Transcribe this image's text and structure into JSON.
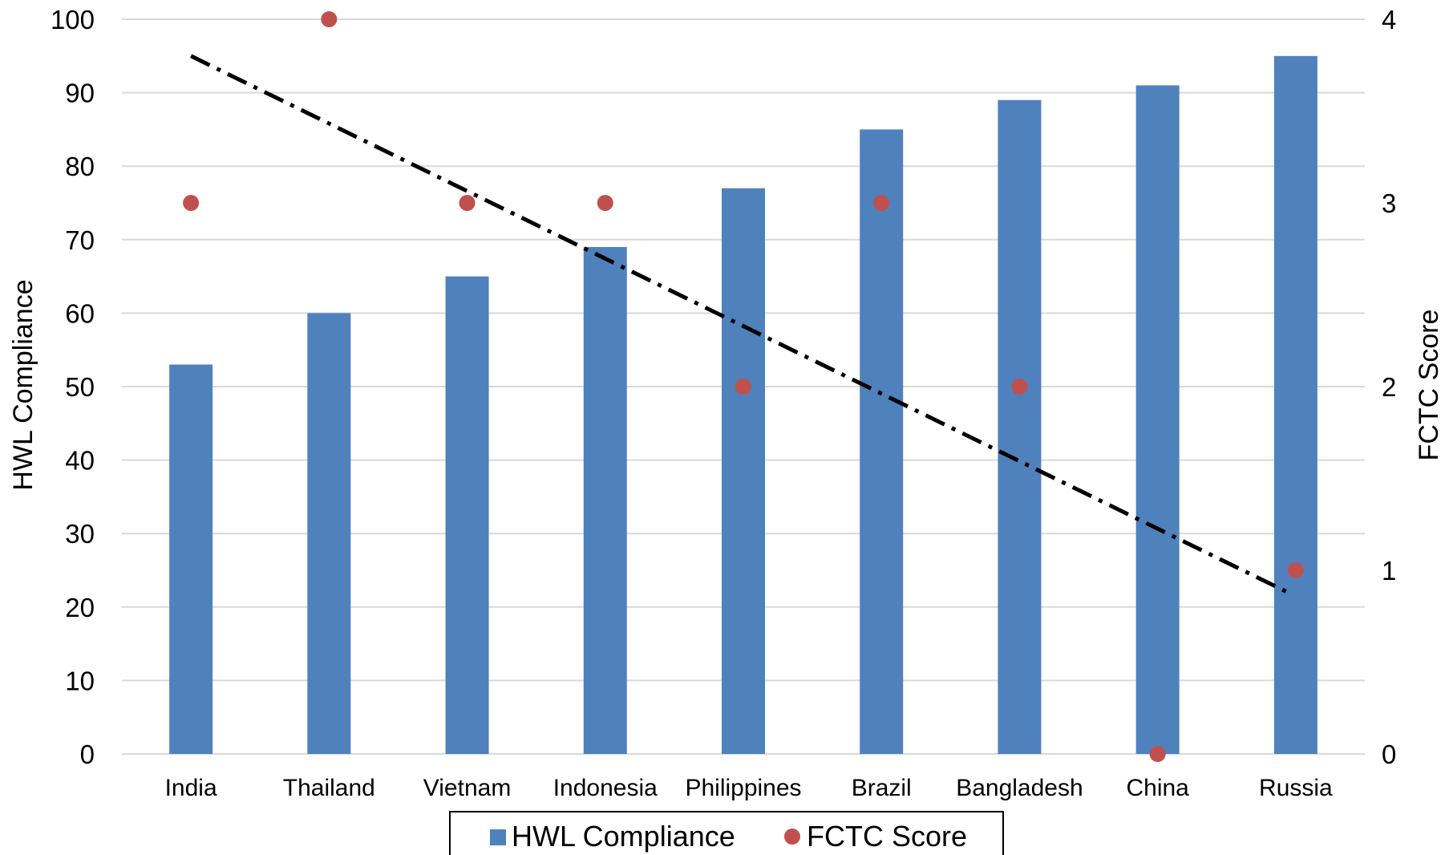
{
  "chart_data": {
    "type": "bar",
    "categories": [
      "India",
      "Thailand",
      "Vietnam",
      "Indonesia",
      "Philippines",
      "Brazil",
      "Bangladesh",
      "China",
      "Russia"
    ],
    "series": [
      {
        "name": "HWL Compliance",
        "type": "bar",
        "axis": "left",
        "color": "#4F81BD",
        "values": [
          53,
          60,
          65,
          69,
          77,
          85,
          89,
          91,
          95
        ]
      },
      {
        "name": "FCTC Score",
        "type": "scatter",
        "axis": "right",
        "color": "#C0504D",
        "values": [
          3,
          4,
          3,
          3,
          2,
          3,
          2,
          0,
          1
        ]
      }
    ],
    "trendline": {
      "of_series": "FCTC Score",
      "style": "dash-dot",
      "color": "#000000",
      "start_value": 3.8,
      "end_value": 0.88
    },
    "ylabel": "HWL Compliance",
    "y2label": "FCTC Score",
    "ylim": [
      0,
      100
    ],
    "yticks": [
      0,
      10,
      20,
      30,
      40,
      50,
      60,
      70,
      80,
      90,
      100
    ],
    "y2lim": [
      0,
      4
    ],
    "y2ticks": [
      0,
      1,
      2,
      3,
      4
    ],
    "grid": true,
    "legend": "bottom-center",
    "gridColor": "#D9D9D9"
  }
}
